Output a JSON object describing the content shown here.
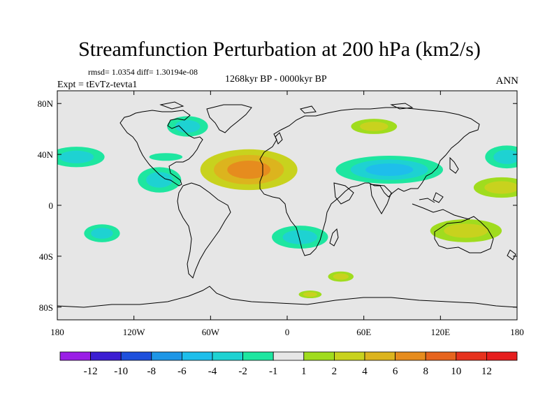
{
  "chart_data": {
    "type": "heatmap",
    "title": "Streamfunction Perturbation at 200 hPa (km2/s)",
    "stats": "rmsd= 1.0354 diff= 1.30194e-08",
    "experiment": "Expt = tEvTz-tevta1",
    "period": "1268kyr BP - 0000kyr BP",
    "season": "ANN",
    "x_range": [
      -180,
      180
    ],
    "y_range": [
      -90,
      90
    ],
    "x_ticks": [
      {
        "value": -180,
        "label": "180"
      },
      {
        "value": -120,
        "label": "120W"
      },
      {
        "value": -60,
        "label": "60W"
      },
      {
        "value": 0,
        "label": "0"
      },
      {
        "value": 60,
        "label": "60E"
      },
      {
        "value": 120,
        "label": "120E"
      },
      {
        "value": 180,
        "label": "180"
      }
    ],
    "y_ticks": [
      {
        "value": 80,
        "label": "80N"
      },
      {
        "value": 40,
        "label": "40N"
      },
      {
        "value": 0,
        "label": "0"
      },
      {
        "value": -40,
        "label": "40S"
      },
      {
        "value": -80,
        "label": "80S"
      }
    ],
    "colorbar": {
      "colors": [
        "#9a1ee6",
        "#3c1ed2",
        "#1e50dc",
        "#1e96e6",
        "#1ebeeb",
        "#1ed2d2",
        "#1ee6a0",
        "#e6e6e6",
        "#a0dc1e",
        "#c8d21e",
        "#dcb41e",
        "#e68c1e",
        "#e6641e",
        "#e6321e",
        "#e61e1e"
      ],
      "labels": [
        "-12",
        "-10",
        "-8",
        "-6",
        "-4",
        "-2",
        "-1",
        "1",
        "2",
        "4",
        "6",
        "8",
        "10",
        "12"
      ]
    },
    "anomalies": [
      {
        "name": "n-atlantic-high",
        "lon": -30,
        "lat": 28,
        "rlon": 38,
        "rlat": 16,
        "core": 4,
        "levels": [
          2,
          4,
          6
        ],
        "peak": "6"
      },
      {
        "name": "n-america-low",
        "lon": -78,
        "lat": 62,
        "rlon": 16,
        "rlat": 8,
        "core": -2,
        "levels": [
          -1,
          -2
        ],
        "peak": "-2"
      },
      {
        "name": "e-pacific-low-west",
        "lon": -165,
        "lat": 38,
        "rlon": 22,
        "rlat": 8,
        "core": -2,
        "levels": [
          -1,
          -2
        ],
        "peak": "-2"
      },
      {
        "name": "e-pacific-low-east",
        "lon": -100,
        "lat": 20,
        "rlon": 17,
        "rlat": 10,
        "core": -2,
        "levels": [
          -1,
          -2
        ],
        "peak": "-2"
      },
      {
        "name": "mexico-low",
        "lon": -95,
        "lat": 38,
        "rlon": 13,
        "rlat": 3,
        "core": -1,
        "levels": [
          -1
        ],
        "peak": "-1"
      },
      {
        "name": "asia-low",
        "lon": 80,
        "lat": 28,
        "rlon": 42,
        "rlat": 11,
        "core": -4,
        "levels": [
          -1,
          -2,
          -4
        ],
        "peak": "-4"
      },
      {
        "name": "w-pacific-low",
        "lon": 172,
        "lat": 38,
        "rlon": 17,
        "rlat": 9,
        "core": -2,
        "levels": [
          -1,
          -2
        ],
        "peak": "-2"
      },
      {
        "name": "pacific-high",
        "lon": 168,
        "lat": 14,
        "rlon": 22,
        "rlat": 8,
        "core": 2,
        "levels": [
          1,
          2
        ],
        "peak": "2"
      },
      {
        "name": "siberia-high",
        "lon": 68,
        "lat": 62,
        "rlon": 18,
        "rlat": 6,
        "core": 2,
        "levels": [
          1,
          2
        ],
        "peak": "2"
      },
      {
        "name": "australia-high",
        "lon": 140,
        "lat": -20,
        "rlon": 28,
        "rlat": 9,
        "core": 2,
        "levels": [
          1,
          2
        ],
        "peak": "2"
      },
      {
        "name": "s-pacific-low",
        "lon": -145,
        "lat": -22,
        "rlon": 14,
        "rlat": 7,
        "core": -2,
        "levels": [
          -1,
          -2
        ],
        "peak": "-2"
      },
      {
        "name": "s-atlantic-low",
        "lon": 10,
        "lat": -25,
        "rlon": 22,
        "rlat": 9,
        "core": -2,
        "levels": [
          -1,
          -2
        ],
        "peak": "-2"
      },
      {
        "name": "s-indian-high",
        "lon": 42,
        "lat": -56,
        "rlon": 10,
        "rlat": 4,
        "core": 2,
        "levels": [
          1,
          2
        ],
        "peak": "2"
      },
      {
        "name": "southern-ocean-high",
        "lon": 18,
        "lat": -70,
        "rlon": 9,
        "rlat": 3,
        "core": 2,
        "levels": [
          1,
          2
        ],
        "peak": "2"
      }
    ]
  }
}
